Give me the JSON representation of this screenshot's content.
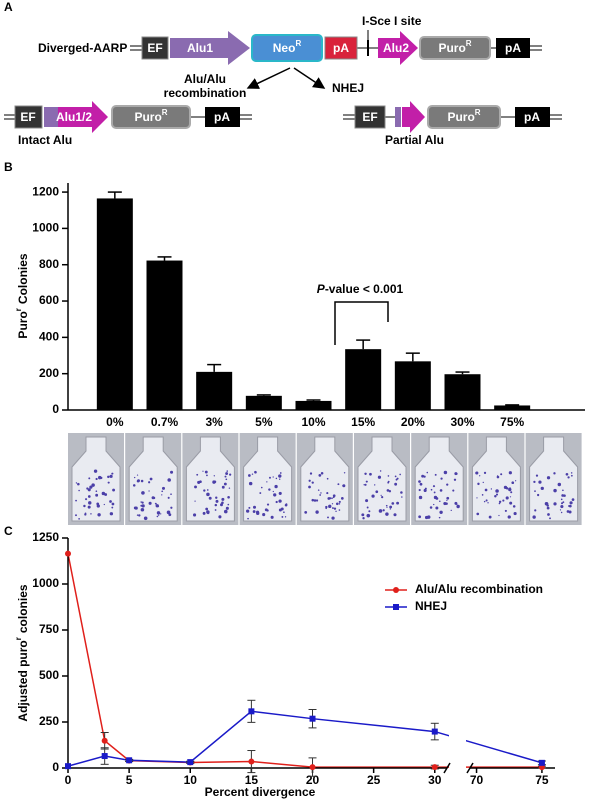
{
  "figure": {
    "panel_labels": [
      "A",
      "B",
      "C"
    ]
  },
  "diagram": {
    "construct_name": "Diverged-AARP",
    "site_label": "I-Sce I site",
    "top_row": {
      "ef": "EF",
      "alu1": "Alu1",
      "neo": {
        "text": "Neo",
        "sup": "R"
      },
      "pa1": "pA",
      "alu2": "Alu2",
      "puro": {
        "text": "Puro",
        "sup": "R"
      },
      "pa2": "pA"
    },
    "left_branch": [
      "Alu/Alu",
      "recombination"
    ],
    "right_branch": "NHEJ",
    "intact_row": {
      "ef": "EF",
      "alu": "Alu1/2",
      "puro": {
        "text": "Puro",
        "sup": "R"
      },
      "pa": "pA",
      "caption": "Intact Alu"
    },
    "partial_row": {
      "ef": "EF",
      "puro": {
        "text": "Puro",
        "sup": "R"
      },
      "pa": "pA",
      "caption": "Partial Alu"
    }
  },
  "chart_data": [
    {
      "type": "bar",
      "ylabel": {
        "text": "Puro",
        "sup": "r",
        "rest": "Colonies"
      },
      "categories": [
        "0%",
        "0.7%",
        "3%",
        "5%",
        "10%",
        "15%",
        "20%",
        "30%",
        "75%"
      ],
      "values": [
        1165,
        823,
        210,
        78,
        50,
        335,
        268,
        197,
        25
      ],
      "errors": [
        35,
        20,
        40,
        5,
        5,
        50,
        45,
        12,
        3
      ],
      "color": "#000000",
      "ylim": [
        0,
        1250
      ],
      "yticks": [
        0,
        200,
        400,
        600,
        800,
        1000,
        1200
      ],
      "annotation": {
        "italic": "P",
        "rest": "-value < 0.001"
      }
    },
    {
      "type": "line",
      "ylabel": {
        "text": "Adjusted puro",
        "sup": "r",
        "rest": "colonies"
      },
      "xlabel": "Percent divergence",
      "x": [
        0,
        3,
        5,
        10,
        15,
        20,
        30,
        75
      ],
      "xlim": [
        0,
        76
      ],
      "x_break": [
        31,
        69.5
      ],
      "xticks": [
        0,
        5,
        10,
        15,
        20,
        25,
        30,
        70,
        75
      ],
      "ylim": [
        0,
        1250
      ],
      "yticks": [
        0,
        250,
        500,
        750,
        1000,
        1250
      ],
      "legend": "upper-right",
      "series": [
        {
          "name": "Alu/Alu recombination",
          "color": "#e0201b",
          "marker": "circle",
          "values": [
            1165,
            148,
            40,
            30,
            35,
            5,
            5,
            5
          ],
          "errors": [
            0,
            45,
            5,
            5,
            60,
            50,
            10,
            5
          ]
        },
        {
          "name": "NHEJ",
          "color": "#1a1ac8",
          "marker": "square",
          "values": [
            10,
            65,
            42,
            32,
            308,
            268,
            198,
            28
          ],
          "errors": [
            0,
            45,
            5,
            5,
            60,
            50,
            45,
            10
          ]
        }
      ]
    }
  ]
}
